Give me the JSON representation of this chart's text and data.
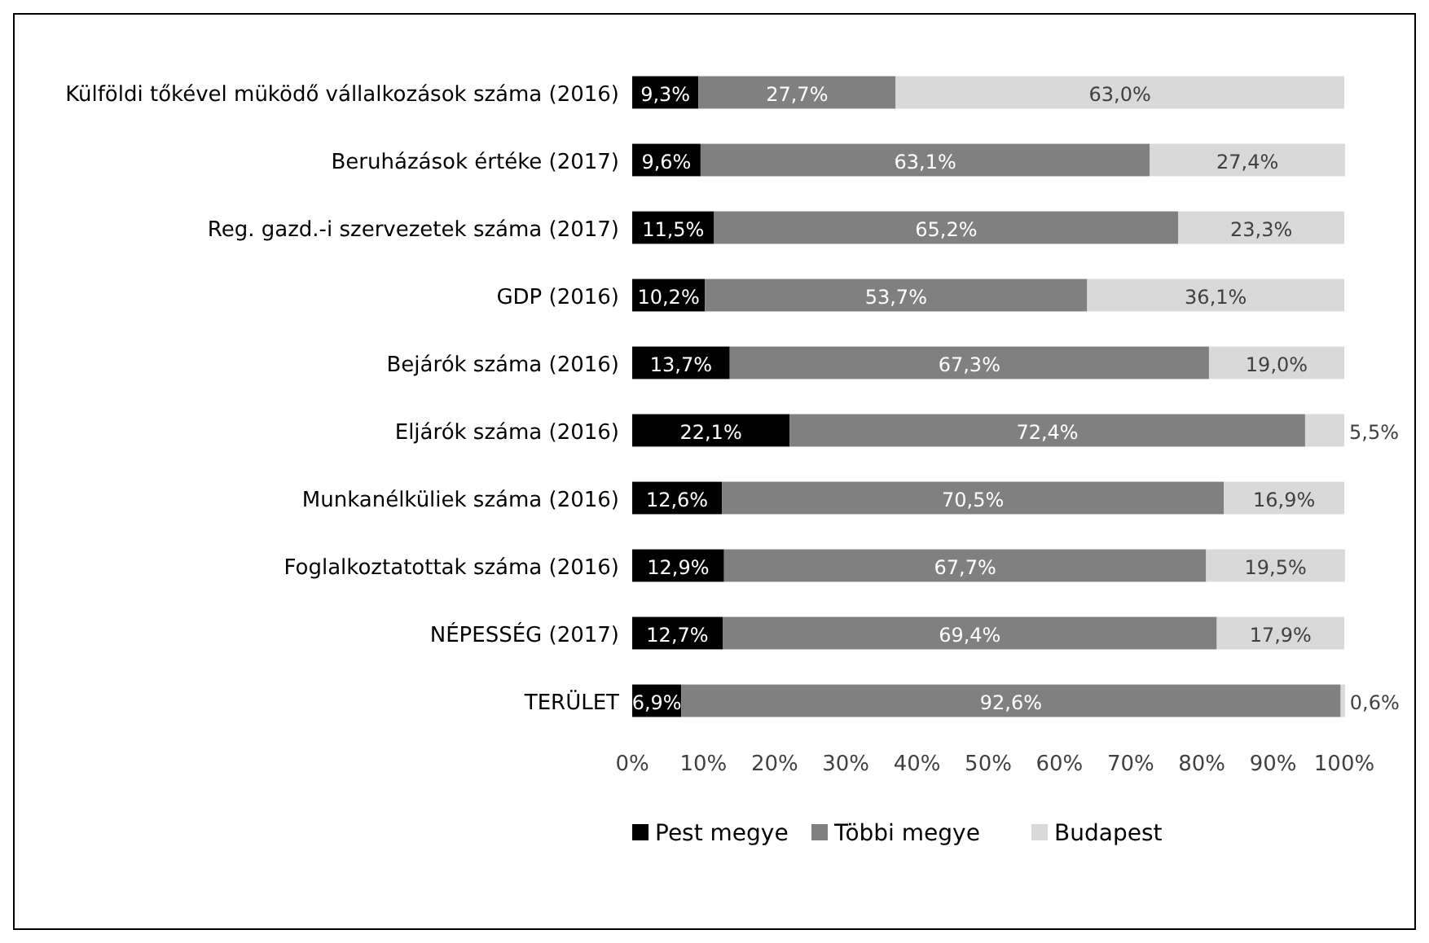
{
  "chart_data": {
    "type": "bar",
    "orientation": "horizontal",
    "stacked": true,
    "legend": "bottom",
    "grid": false,
    "categories": [
      "Külföldi tőkével müködő vállalkozások száma (2016)",
      "Beruházások értéke (2017)",
      "Reg. gazd.-i szervezetek száma (2017)",
      "GDP (2016)",
      "Bejárók száma (2016)",
      "Eljárók száma (2016)",
      "Munkanélküliek száma (2016)",
      "Foglalkoztatottak száma (2016)",
      "NÉPESSÉG (2017)",
      "TERÜLET"
    ],
    "xlim": [
      0,
      100
    ],
    "xticks": [
      {
        "value": 0,
        "label": "0%"
      },
      {
        "value": 10,
        "label": "10%"
      },
      {
        "value": 20,
        "label": "20%"
      },
      {
        "value": 30,
        "label": "30%"
      },
      {
        "value": 40,
        "label": "40%"
      },
      {
        "value": 50,
        "label": "50%"
      },
      {
        "value": 60,
        "label": "60%"
      },
      {
        "value": 70,
        "label": "70%"
      },
      {
        "value": 80,
        "label": "80%"
      },
      {
        "value": 90,
        "label": "90%"
      },
      {
        "value": 100,
        "label": "100%"
      }
    ],
    "series": [
      {
        "name": "Pest megye",
        "color": "#000000",
        "values": [
          9.3,
          9.6,
          11.5,
          10.2,
          13.7,
          22.1,
          12.6,
          12.9,
          12.7,
          6.9
        ],
        "value_labels": [
          "9,3%",
          "9,6%",
          "11,5%",
          "10,2%",
          "13,7%",
          "22,1%",
          "12,6%",
          "12,9%",
          "12,7%",
          "6,9%"
        ]
      },
      {
        "name": "Többi megye",
        "color": "#808080",
        "values": [
          27.7,
          63.1,
          65.2,
          53.7,
          67.3,
          72.4,
          70.5,
          67.7,
          69.4,
          92.6
        ],
        "value_labels": [
          "27,7%",
          "63,1%",
          "65,2%",
          "53,7%",
          "67,3%",
          "72,4%",
          "70,5%",
          "67,7%",
          "69,4%",
          "92,6%"
        ]
      },
      {
        "name": "Budapest",
        "color": "#d9d9d9",
        "values": [
          63.0,
          27.4,
          23.3,
          36.1,
          19.0,
          5.5,
          16.9,
          19.5,
          17.9,
          0.6
        ],
        "value_labels": [
          "63,0%",
          "27,4%",
          "23,3%",
          "36,1%",
          "19,0%",
          "5,5%",
          "16,9%",
          "19,5%",
          "17,9%",
          "0,6%"
        ]
      }
    ]
  }
}
